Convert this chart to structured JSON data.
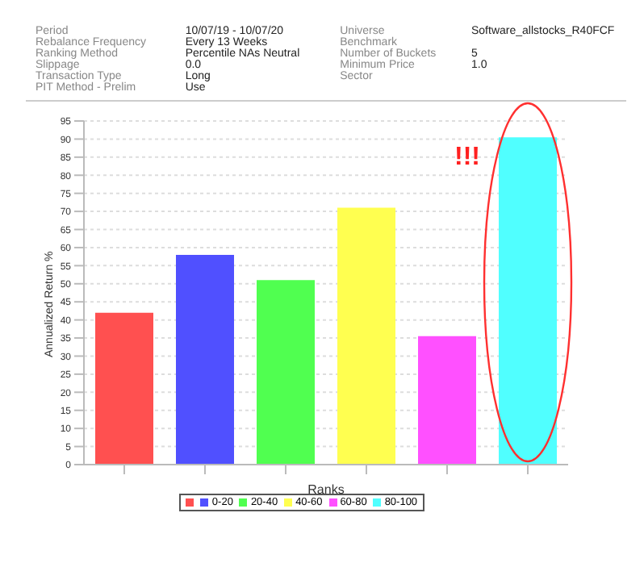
{
  "chart_data": [
    {
      "type": "other",
      "annotations": [
        "Period",
        "10/07/19 - 10/07/20",
        "Universe",
        "Software_allstocks_R40FCF",
        "Rebalance Frequency",
        "Every 13 Weeks",
        "Benchmark",
        null,
        "Ranking Method",
        "Percentile NAs Neutral",
        "Number of Buckets",
        "5",
        "Slippage",
        "0.0",
        "Minimum Price",
        "1.0",
        "Transaction Type",
        "Long",
        "Sector",
        null,
        "PIT Method - Prelim",
        "Use"
      ]
    },
    {
      "type": "bar",
      "stacked": true,
      "categories": [
        null,
        null,
        null,
        null,
        null,
        null
      ],
      "series": [
        {
          "color": "#ff5050",
          "values": [
            42,
            null,
            null,
            null,
            null,
            null
          ]
        },
        {
          "name": "0-20",
          "color": "#5050ff",
          "values": [
            null,
            58,
            null,
            null,
            null,
            null
          ]
        },
        {
          "name": "20-40",
          "color": "#50ff50",
          "values": [
            null,
            null,
            51,
            null,
            null,
            null
          ]
        },
        {
          "name": "40-60",
          "color": "#ffff50",
          "values": [
            null,
            null,
            null,
            71,
            null,
            null
          ]
        },
        {
          "name": "60-80",
          "color": "#ff50ff",
          "values": [
            null,
            null,
            null,
            null,
            35.5,
            null
          ]
        },
        {
          "name": "80-100",
          "color": "#50ffff",
          "values": [
            null,
            null,
            null,
            null,
            null,
            90.5
          ]
        }
      ],
      "ylim": [
        0,
        95
      ],
      "yticks": [
        0,
        5,
        10,
        15,
        20,
        25,
        30,
        35,
        40,
        45,
        50,
        55,
        60,
        65,
        70,
        75,
        80,
        85,
        90,
        95
      ],
      "grid": "y",
      "ylabel": "Annualized Return %",
      "xlabel": "Ranks",
      "legend": "bottom",
      "annotations": [
        "!!!"
      ]
    }
  ]
}
